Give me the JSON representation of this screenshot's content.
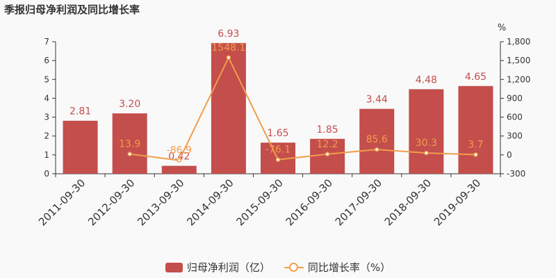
{
  "title": "季报归母净利润及同比增长率",
  "colors": {
    "bar": "#c34e4c",
    "line": "#f29d4b",
    "axis": "#333333",
    "tick_text": "#333333"
  },
  "chart_data": {
    "type": "bar",
    "categories": [
      "2011-09-30",
      "2012-09-30",
      "2013-09-30",
      "2014-09-30",
      "2015-09-30",
      "2016-09-30",
      "2017-09-30",
      "2018-09-30",
      "2019-09-30"
    ],
    "series": [
      {
        "name": "归母净利润（亿）",
        "type": "bar",
        "axis": "left",
        "values": [
          2.81,
          3.2,
          0.42,
          6.93,
          1.65,
          1.85,
          3.44,
          4.48,
          4.65
        ],
        "labels": [
          "2.81",
          "3.20",
          "0.42",
          "6.93",
          "1.65",
          "1.85",
          "3.44",
          "4.48",
          "4.65"
        ]
      },
      {
        "name": "同比增长率（%）",
        "type": "line",
        "axis": "right",
        "values": [
          null,
          13.9,
          -86.9,
          1548.1,
          -76.1,
          12.2,
          85.6,
          30.3,
          3.7
        ],
        "labels": [
          "",
          "13.9",
          "-86.9",
          "1548.1",
          "-76.1",
          "12.2",
          "85.6",
          "30.3",
          "3.7"
        ]
      }
    ],
    "y_left": {
      "min": 0,
      "max": 7,
      "ticks": [
        "0",
        "1",
        "2",
        "3",
        "4",
        "5",
        "6",
        "7"
      ]
    },
    "y_right": {
      "unit": "%",
      "min": -300,
      "max": 1800,
      "ticks": [
        "-300",
        "0",
        "300",
        "600",
        "900",
        "1,200",
        "1,500",
        "1,800"
      ]
    },
    "grid": false,
    "legend_position": "bottom"
  }
}
